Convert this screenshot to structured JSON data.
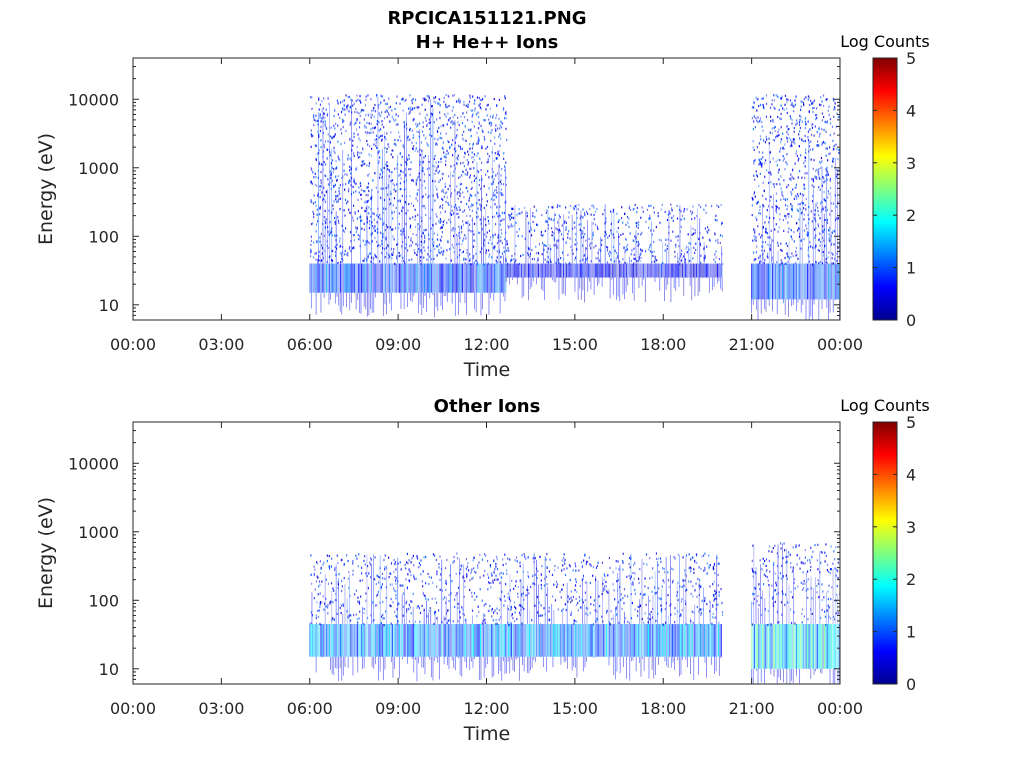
{
  "figure_title": "RPCICA151121.PNG",
  "colorbar_label": "Log Counts",
  "chart_data": [
    {
      "type": "heatmap",
      "title": "H+ He++ Ions",
      "xlabel": "Time",
      "ylabel": "Energy (eV)",
      "x_tick_labels": [
        "00:00",
        "03:00",
        "06:00",
        "09:00",
        "12:00",
        "15:00",
        "18:00",
        "21:00",
        "00:00"
      ],
      "y_tick_labels": [
        "10",
        "100",
        "1000",
        "10000"
      ],
      "y_scale": "log",
      "ylim": [
        6,
        40000
      ],
      "colorbar": {
        "label": "Log Counts",
        "range": [
          0,
          5
        ],
        "ticks": [
          "0",
          "1",
          "2",
          "3",
          "4",
          "5"
        ],
        "colormap": "jet"
      },
      "segments": [
        {
          "start": "06:00",
          "end": "12:40",
          "band_eV": [
            15,
            40
          ],
          "band_log_counts": 1.0,
          "sparse_max_eV": 12000
        },
        {
          "start": "12:40",
          "end": "20:00",
          "band_eV": [
            25,
            40
          ],
          "band_log_counts": 0.6,
          "sparse_max_eV": 300
        },
        {
          "start": "21:00",
          "end": "24:00",
          "band_eV": [
            12,
            40
          ],
          "band_log_counts": 1.0,
          "sparse_max_eV": 12000
        }
      ]
    },
    {
      "type": "heatmap",
      "title": "Other Ions",
      "xlabel": "Time",
      "ylabel": "Energy (eV)",
      "x_tick_labels": [
        "00:00",
        "03:00",
        "06:00",
        "09:00",
        "12:00",
        "15:00",
        "18:00",
        "21:00",
        "00:00"
      ],
      "y_tick_labels": [
        "10",
        "100",
        "1000",
        "10000"
      ],
      "y_scale": "log",
      "ylim": [
        6,
        40000
      ],
      "colorbar": {
        "label": "Log Counts",
        "range": [
          0,
          5
        ],
        "ticks": [
          "0",
          "1",
          "2",
          "3",
          "4",
          "5"
        ],
        "colormap": "jet"
      },
      "segments": [
        {
          "start": "06:00",
          "end": "20:00",
          "band_eV": [
            15,
            45
          ],
          "band_log_counts": 1.3,
          "sparse_max_eV": 500
        },
        {
          "start": "21:00",
          "end": "24:00",
          "band_eV": [
            10,
            45
          ],
          "band_log_counts": 1.8,
          "sparse_max_eV": 700
        }
      ]
    }
  ]
}
